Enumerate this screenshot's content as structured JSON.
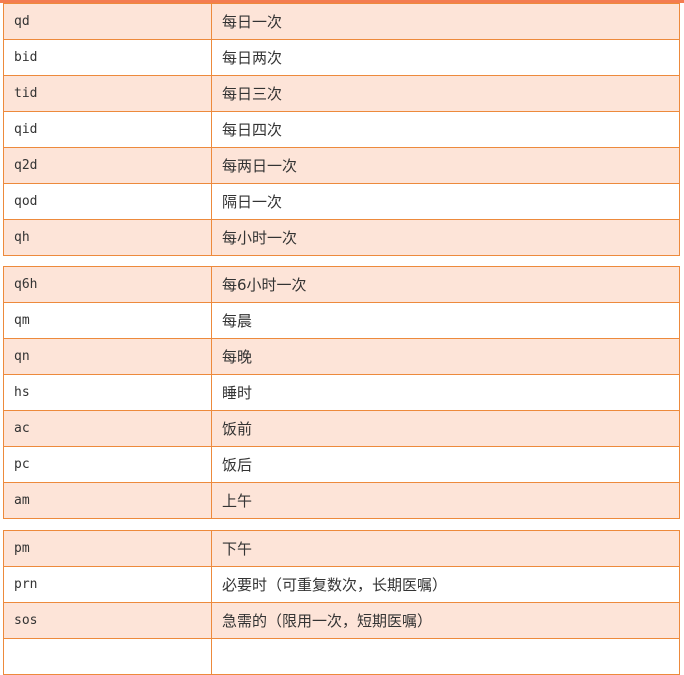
{
  "colors": {
    "border": "#ed8a3c",
    "odd_row": "#fde4d8",
    "top_bar": "#f47c50"
  },
  "tables": [
    {
      "rows": [
        {
          "abbr": "qd",
          "meaning": "每日一次"
        },
        {
          "abbr": "bid",
          "meaning": "每日两次"
        },
        {
          "abbr": "tid",
          "meaning": "每日三次"
        },
        {
          "abbr": "qid",
          "meaning": "每日四次"
        },
        {
          "abbr": "q2d",
          "meaning": "每两日一次"
        },
        {
          "abbr": "qod",
          "meaning": "隔日一次"
        },
        {
          "abbr": "qh",
          "meaning": "每小时一次"
        }
      ]
    },
    {
      "rows": [
        {
          "abbr": "q6h",
          "meaning": "每6小时一次"
        },
        {
          "abbr": "qm",
          "meaning": "每晨"
        },
        {
          "abbr": "qn",
          "meaning": "每晚"
        },
        {
          "abbr": "hs",
          "meaning": "睡时"
        },
        {
          "abbr": "ac",
          "meaning": "饭前"
        },
        {
          "abbr": "pc",
          "meaning": "饭后"
        },
        {
          "abbr": "am",
          "meaning": "上午"
        }
      ]
    },
    {
      "rows": [
        {
          "abbr": "pm",
          "meaning": "下午"
        },
        {
          "abbr": "prn",
          "meaning": "必要时（可重复数次，长期医嘱）"
        },
        {
          "abbr": "sos",
          "meaning": "急需的（限用一次，短期医嘱）"
        },
        {
          "abbr": "",
          "meaning": ""
        }
      ]
    }
  ]
}
